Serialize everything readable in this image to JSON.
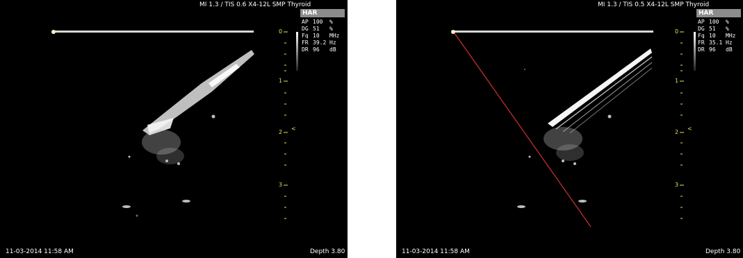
{
  "left": {
    "header": "MI 1.3 / TIS 0.6  X4-12L  SMP Thyroid",
    "mode": "HAR",
    "params": [
      {
        "key": "AP",
        "value": "100",
        "unit": "%"
      },
      {
        "key": "DG",
        "value": "51",
        "unit": "%"
      },
      {
        "key": "Fq",
        "value": "10",
        "unit": "MHz"
      },
      {
        "key": "FR",
        "value": "39.2",
        "unit": "Hz"
      },
      {
        "key": "DR",
        "value": "96",
        "unit": "dB"
      }
    ],
    "depth_ticks": [
      "0",
      "1",
      "2",
      "3"
    ],
    "focus_marker": "<",
    "timestamp": "11-03-2014 11:58 AM",
    "depth": "Depth 3.80"
  },
  "right": {
    "header": "MI 1.3 / TIS 0.5  X4-12L  SMP Thyroid",
    "mode": "HAR",
    "params": [
      {
        "key": "AP",
        "value": "100",
        "unit": "%"
      },
      {
        "key": "DG",
        "value": "51",
        "unit": "%"
      },
      {
        "key": "Fq",
        "value": "10",
        "unit": "MHz"
      },
      {
        "key": "FR",
        "value": "35.1",
        "unit": "Hz"
      },
      {
        "key": "DR",
        "value": "96",
        "unit": "dB"
      }
    ],
    "depth_ticks": [
      "0",
      "1",
      "2",
      "3"
    ],
    "focus_marker": "<",
    "timestamp": "11-03-2014 11:58 AM",
    "depth": "Depth 3.80"
  },
  "colors": {
    "background": "#000000",
    "text": "#ffffff",
    "scale": "#e8e35a",
    "guide_line": "#c0302a",
    "mode_box": "#8c8c8c"
  }
}
